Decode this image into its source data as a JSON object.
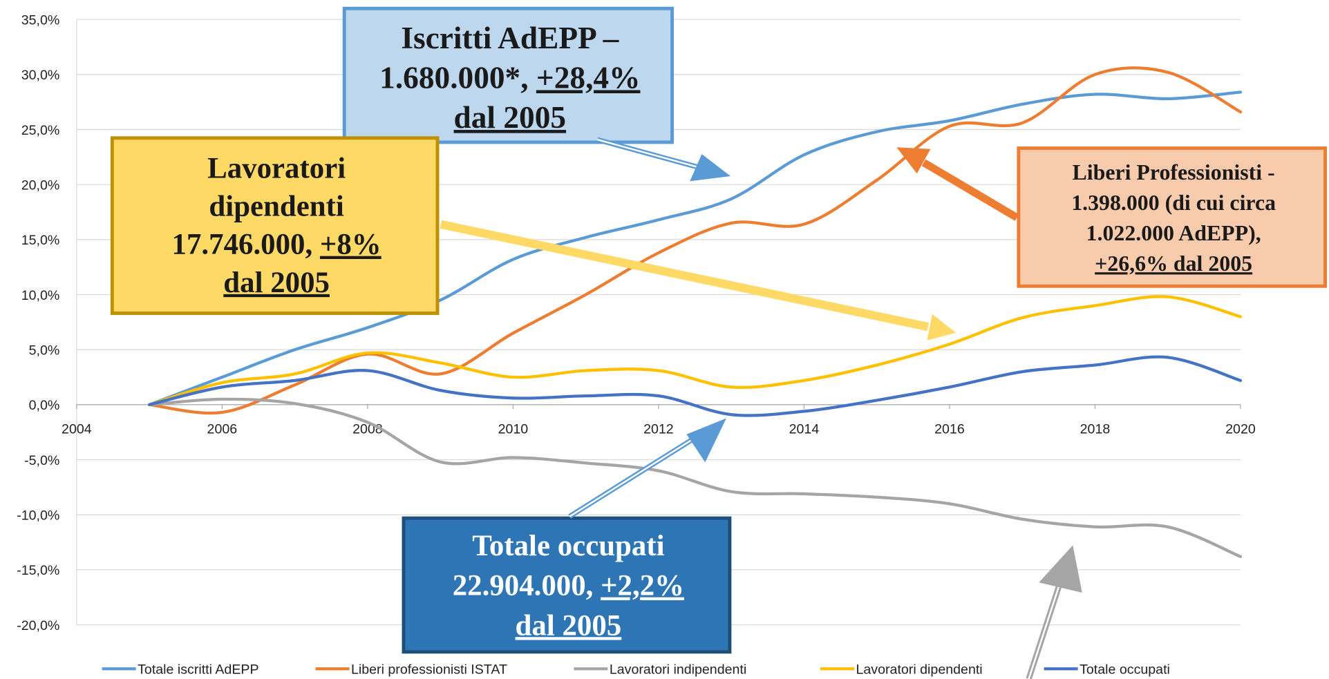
{
  "chart_data": {
    "type": "line",
    "x": [
      2005,
      2006,
      2007,
      2008,
      2009,
      2010,
      2011,
      2012,
      2013,
      2014,
      2015,
      2016,
      2017,
      2018,
      2019,
      2020
    ],
    "series": [
      {
        "name": "Totale iscritti AdEPP",
        "color": "#5b9bd5",
        "values": [
          0,
          2.5,
          5,
          7,
          9.5,
          13.2,
          15.2,
          16.8,
          18.7,
          22.7,
          24.8,
          25.8,
          27.3,
          28.2,
          27.8,
          28.4
        ]
      },
      {
        "name": "Liberi professionisti ISTAT",
        "color": "#ed7d31",
        "values": [
          0,
          -0.7,
          1.8,
          4.6,
          2.8,
          6.5,
          10,
          13.8,
          16.5,
          16.4,
          20.4,
          25.3,
          25.6,
          30,
          30.2,
          26.6
        ]
      },
      {
        "name": "Lavoratori indipendenti",
        "color": "#a5a5a5",
        "values": [
          0,
          0.5,
          0.1,
          -1.6,
          -5.2,
          -4.8,
          -5.3,
          -6,
          -7.9,
          -8.1,
          -8.4,
          -9,
          -10.4,
          -11.1,
          -11.1,
          -13.8
        ]
      },
      {
        "name": "Lavoratori dipendenti",
        "color": "#ffc000",
        "values": [
          0,
          2,
          2.8,
          4.7,
          3.8,
          2.5,
          3.1,
          3.1,
          1.6,
          2.2,
          3.6,
          5.5,
          7.9,
          9,
          9.8,
          8
        ]
      },
      {
        "name": "Totale occupati",
        "color": "#4472c4",
        "values": [
          0,
          1.6,
          2.2,
          3.1,
          1.3,
          0.6,
          0.8,
          0.8,
          -0.9,
          -0.6,
          0.4,
          1.6,
          3,
          3.6,
          4.3,
          2.2
        ]
      }
    ],
    "xlim": [
      2004,
      2020
    ],
    "xticks": [
      2004,
      2006,
      2008,
      2010,
      2012,
      2014,
      2016,
      2018,
      2020
    ],
    "ylim": [
      -20,
      35
    ],
    "yticks": [
      {
        "value": -20,
        "label": "-20,0%"
      },
      {
        "value": -15,
        "label": "-15,0%"
      },
      {
        "value": -10,
        "label": "-10,0%"
      },
      {
        "value": -5,
        "label": "-5,0%"
      },
      {
        "value": 0,
        "label": "0,0%"
      },
      {
        "value": 5,
        "label": "5,0%"
      },
      {
        "value": 10,
        "label": "10,0%"
      },
      {
        "value": 15,
        "label": "15,0%"
      },
      {
        "value": 20,
        "label": "20,0%"
      },
      {
        "value": 25,
        "label": "25,0%"
      },
      {
        "value": 30,
        "label": "30,0%"
      },
      {
        "value": 35,
        "label": "35,0%"
      }
    ],
    "grid": true,
    "legend": "bottom",
    "annotations": [
      {
        "lines": [
          [
            {
              "text": "Iscritti AdEPP –"
            }
          ],
          [
            {
              "text": "1.680.000*, "
            },
            {
              "text": "+28,4%",
              "underline": true
            }
          ],
          [
            {
              "text": "dal 2005",
              "underline": true
            }
          ]
        ]
      },
      {
        "lines": [
          [
            {
              "text": "Lavoratori"
            }
          ],
          [
            {
              "text": "dipendenti"
            }
          ],
          [
            {
              "text": "17.746.000, "
            },
            {
              "text": "+8%",
              "underline": true
            }
          ],
          [
            {
              "text": "dal 2005",
              "underline": true
            }
          ]
        ]
      },
      {
        "lines": [
          [
            {
              "text": "Liberi Professionisti -"
            }
          ],
          [
            {
              "text": "1.398.000 (di cui circa"
            }
          ],
          [
            {
              "text": "1.022.000 AdEPP),"
            }
          ],
          [
            {
              "text": "+26,6% dal 2005",
              "underline": true
            }
          ]
        ]
      },
      {
        "lines": [
          [
            {
              "text": "Totale occupati"
            }
          ],
          [
            {
              "text": "22.904.000, "
            },
            {
              "text": "+2,2%",
              "underline": true
            }
          ],
          [
            {
              "text": "dal 2005",
              "underline": true
            }
          ]
        ]
      }
    ]
  }
}
